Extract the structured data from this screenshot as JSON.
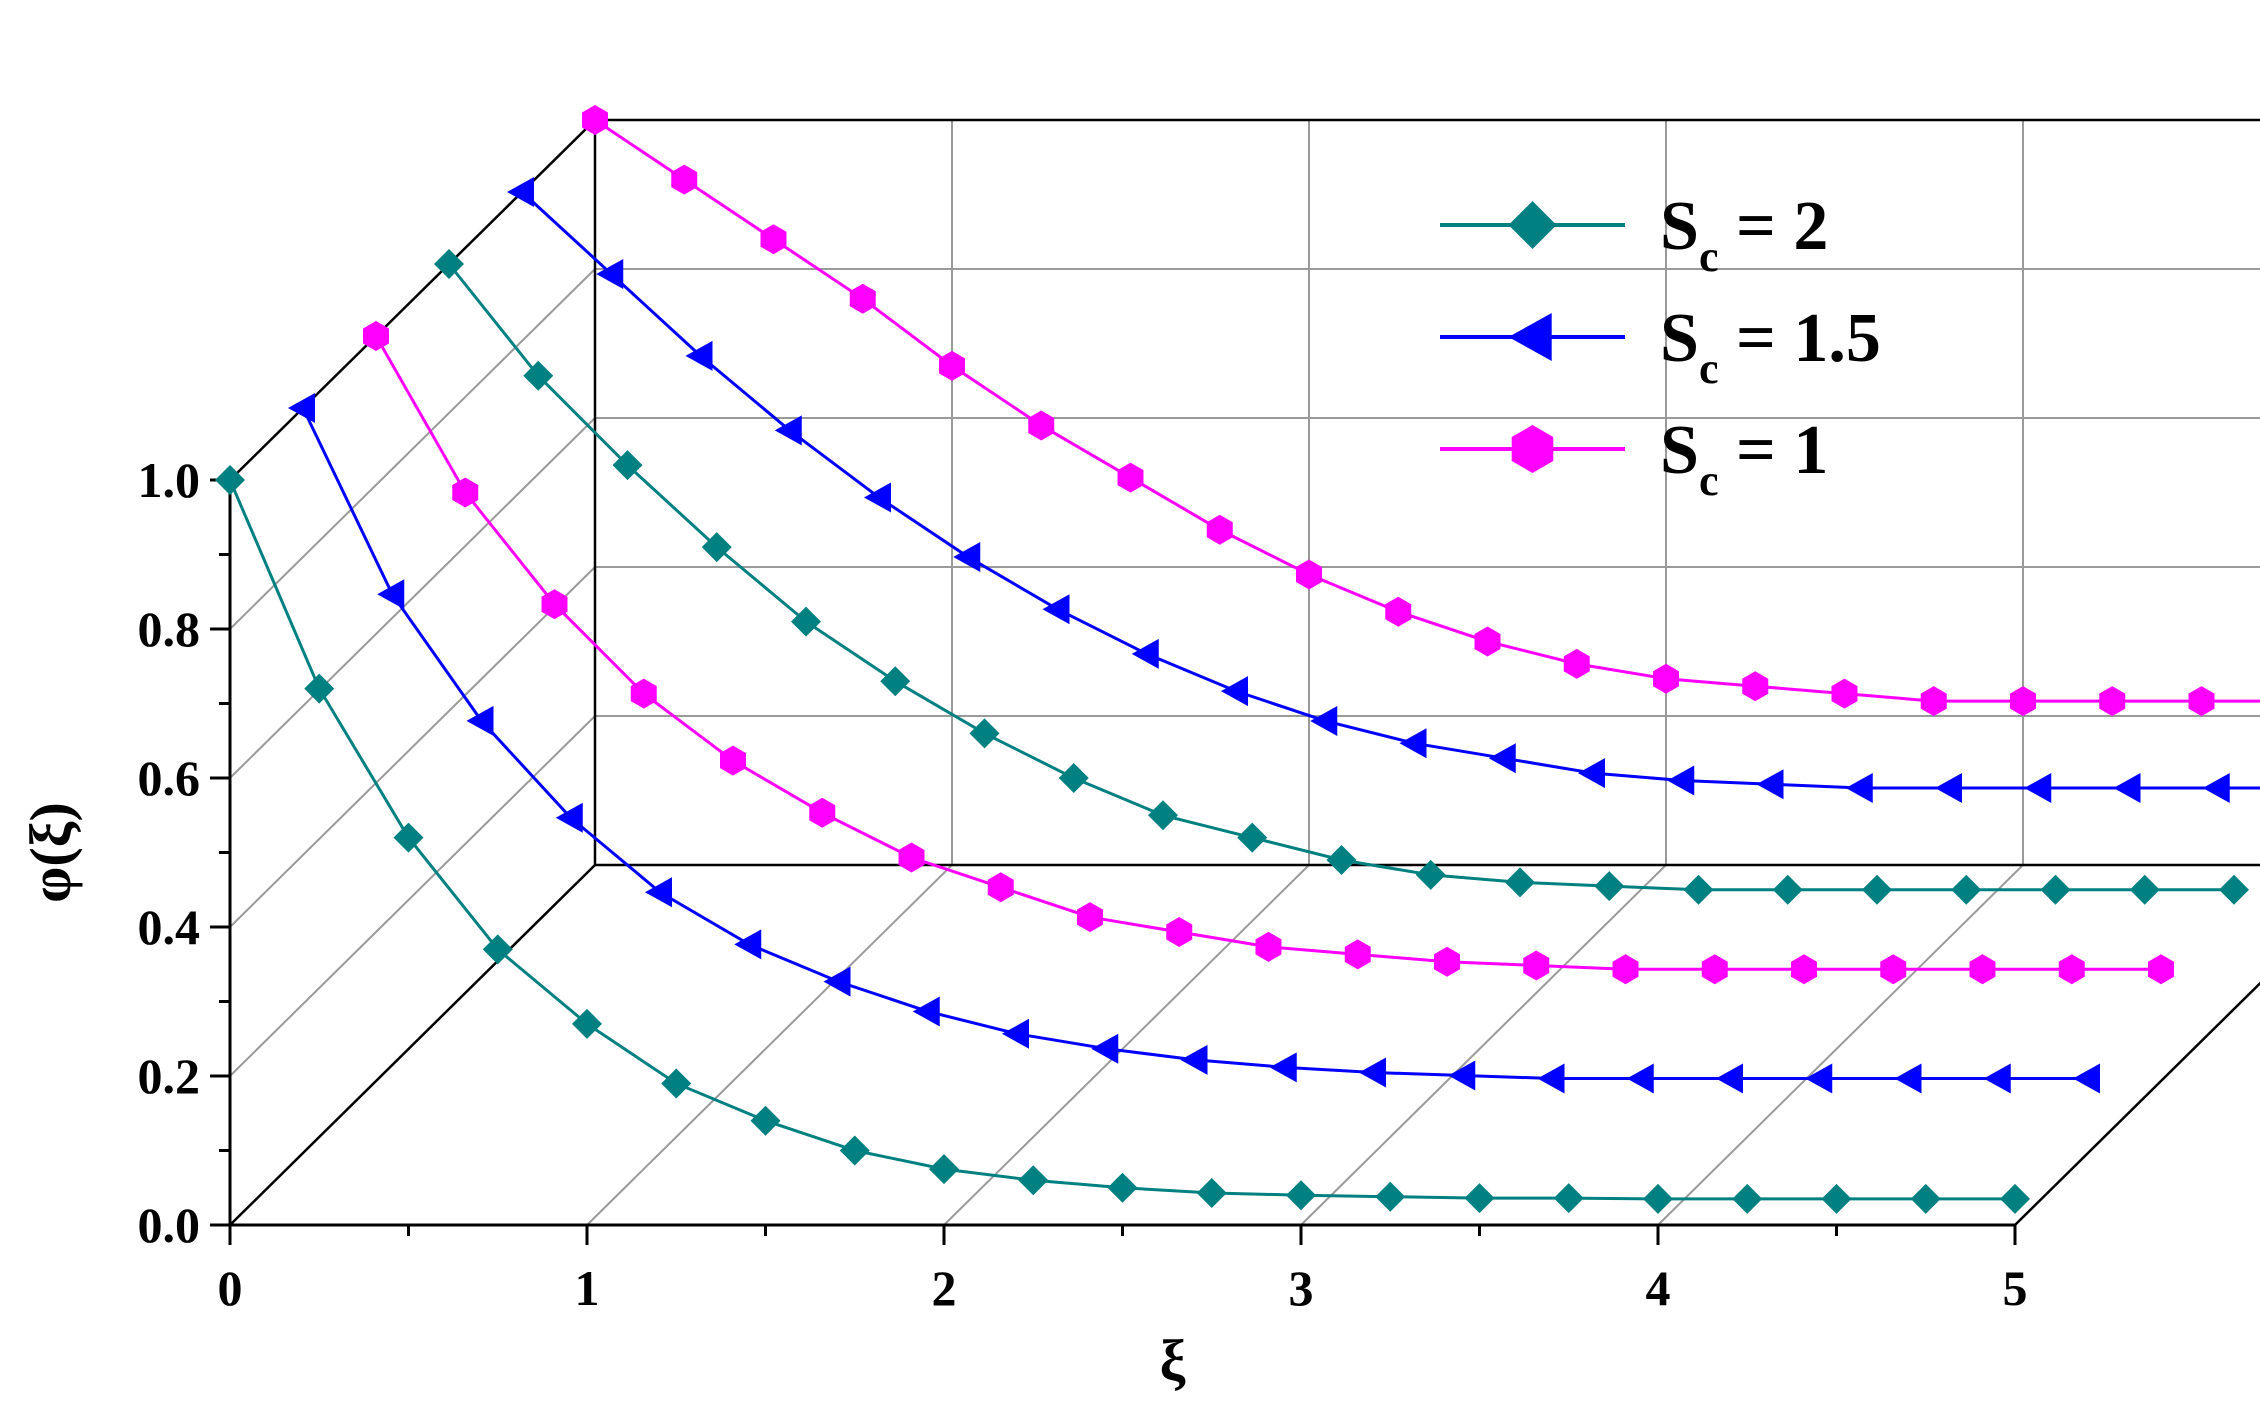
{
  "chart_data": {
    "type": "line",
    "title": "",
    "xlabel": "ξ",
    "ylabel": "φ(ξ)",
    "xlim": [
      0,
      5
    ],
    "ylim": [
      0,
      1.0
    ],
    "x_ticks": [
      "0",
      "1",
      "2",
      "3",
      "4",
      "5"
    ],
    "y_ticks": [
      "0.0",
      "0.2",
      "0.4",
      "0.6",
      "0.8",
      "1.0"
    ],
    "grid": true,
    "legend_position": "top-right",
    "x": [
      0,
      0.25,
      0.5,
      0.75,
      1.0,
      1.25,
      1.5,
      1.75,
      2.0,
      2.25,
      2.5,
      2.75,
      3.0,
      3.25,
      3.5,
      3.75,
      4.0,
      4.25,
      4.5,
      4.75,
      5.0
    ],
    "series": [
      {
        "name": "Sc = 2",
        "label_main": "S",
        "label_sub": "c",
        "label_rest": " = 2",
        "color": "#008080",
        "marker": "diamond",
        "depth": 0,
        "values": [
          1.0,
          0.72,
          0.52,
          0.37,
          0.27,
          0.19,
          0.14,
          0.1,
          0.075,
          0.06,
          0.05,
          0.043,
          0.04,
          0.038,
          0.036,
          0.036,
          0.035,
          0.035,
          0.035,
          0.035,
          0.035
        ]
      },
      {
        "name": "Sc = 1.5",
        "label_main": "S",
        "label_sub": "c",
        "label_rest": " = 1.5",
        "color": "#0000ff",
        "marker": "triangle-left",
        "depth": 1,
        "values": [
          1.0,
          0.75,
          0.58,
          0.45,
          0.35,
          0.28,
          0.23,
          0.19,
          0.16,
          0.14,
          0.125,
          0.115,
          0.108,
          0.104,
          0.1,
          0.1,
          0.1,
          0.1,
          0.1,
          0.1,
          0.1
        ]
      },
      {
        "name": "Sc = 1",
        "label_main": "S",
        "label_sub": "c",
        "label_rest": " = 1",
        "color": "#ff00ff",
        "marker": "hexagon",
        "depth": 2,
        "values": [
          1.0,
          0.79,
          0.64,
          0.52,
          0.43,
          0.36,
          0.3,
          0.26,
          0.22,
          0.2,
          0.18,
          0.17,
          0.16,
          0.155,
          0.15,
          0.15,
          0.15,
          0.15,
          0.15,
          0.15,
          0.15
        ]
      },
      {
        "name": "Sc = 2",
        "label_main": "S",
        "label_sub": "c",
        "label_rest": " = 2",
        "color": "#008080",
        "marker": "diamond",
        "depth": 3,
        "values": [
          1.0,
          0.85,
          0.73,
          0.62,
          0.52,
          0.44,
          0.37,
          0.31,
          0.26,
          0.23,
          0.2,
          0.18,
          0.17,
          0.165,
          0.16,
          0.16,
          0.16,
          0.16,
          0.16,
          0.16,
          0.16
        ]
      },
      {
        "name": "Sc = 1.5",
        "label_main": "S",
        "label_sub": "c",
        "label_rest": " = 1.5",
        "color": "#0000ff",
        "marker": "triangle-left",
        "depth": 4,
        "values": [
          1.0,
          0.89,
          0.78,
          0.68,
          0.59,
          0.51,
          0.44,
          0.38,
          0.33,
          0.29,
          0.26,
          0.24,
          0.22,
          0.21,
          0.205,
          0.2,
          0.2,
          0.2,
          0.2,
          0.2,
          0.2
        ]
      },
      {
        "name": "Sc = 1",
        "label_main": "S",
        "label_sub": "c",
        "label_rest": " = 1",
        "color": "#ff00ff",
        "marker": "hexagon",
        "depth": 5,
        "values": [
          1.0,
          0.92,
          0.84,
          0.76,
          0.67,
          0.59,
          0.52,
          0.45,
          0.39,
          0.34,
          0.3,
          0.27,
          0.25,
          0.24,
          0.23,
          0.22,
          0.22,
          0.22,
          0.22,
          0.22,
          0.22
        ]
      }
    ],
    "legend": [
      {
        "main": "S",
        "sub": "c",
        "rest": " = 2",
        "color": "#008080",
        "marker": "diamond"
      },
      {
        "main": "S",
        "sub": "c",
        "rest": " = 1.5",
        "color": "#0000ff",
        "marker": "triangle-left"
      },
      {
        "main": "S",
        "sub": "c",
        "rest": " = 1",
        "color": "#ff00ff",
        "marker": "hexagon"
      }
    ]
  }
}
